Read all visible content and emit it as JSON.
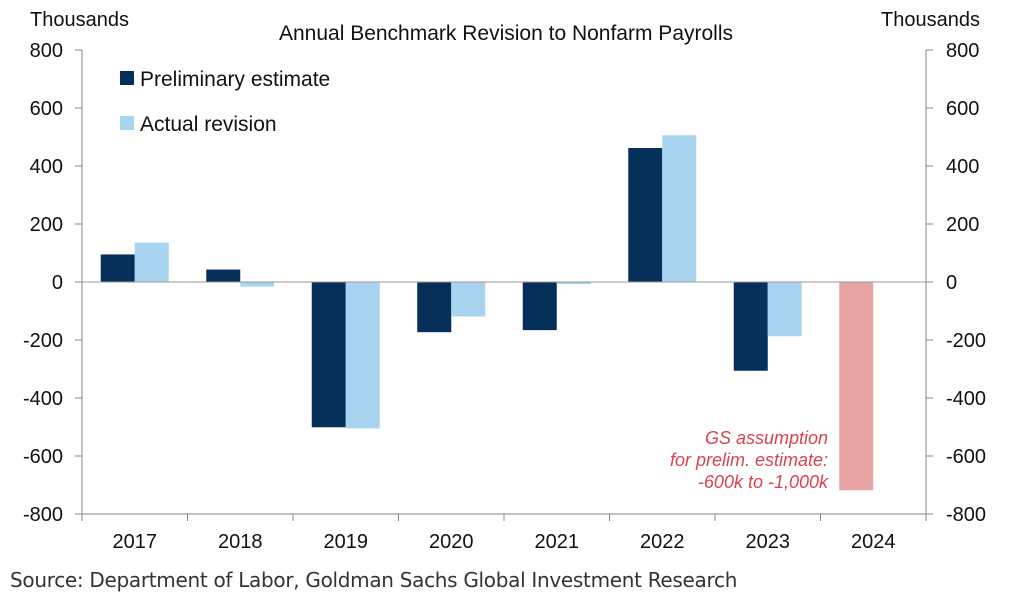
{
  "chart_data": {
    "type": "bar",
    "title": "Annual Benchmark Revision  to Nonfarm  Payrolls",
    "left_axis_unit": "Thousands",
    "right_axis_unit": "Thousands",
    "categories": [
      "2017",
      "2018",
      "2019",
      "2020",
      "2021",
      "2022",
      "2023",
      "2024"
    ],
    "ylim": [
      -800,
      800
    ],
    "yticks": [
      -800,
      -600,
      -400,
      -200,
      0,
      200,
      400,
      600,
      800
    ],
    "series": [
      {
        "name": "Preliminary estimate",
        "color": "#062f5a",
        "values": [
          95,
          43,
          -501,
          -173,
          -166,
          462,
          -306,
          null
        ]
      },
      {
        "name": "Actual revision",
        "color": "#a9d4f0",
        "values": [
          136,
          -16,
          -505,
          -119,
          -7,
          506,
          -187,
          null
        ]
      }
    ],
    "assumption": {
      "category": "2024",
      "value": -718,
      "color": "#e8a3a3",
      "lines": [
        "GS assumption",
        "for prelim. estimate:",
        "-600k to -1,000k"
      ],
      "text_color": "#d9434d"
    },
    "legend": "top-left",
    "grid": false
  },
  "source": "Source: Department of Labor, Goldman Sachs Global Investment Research"
}
